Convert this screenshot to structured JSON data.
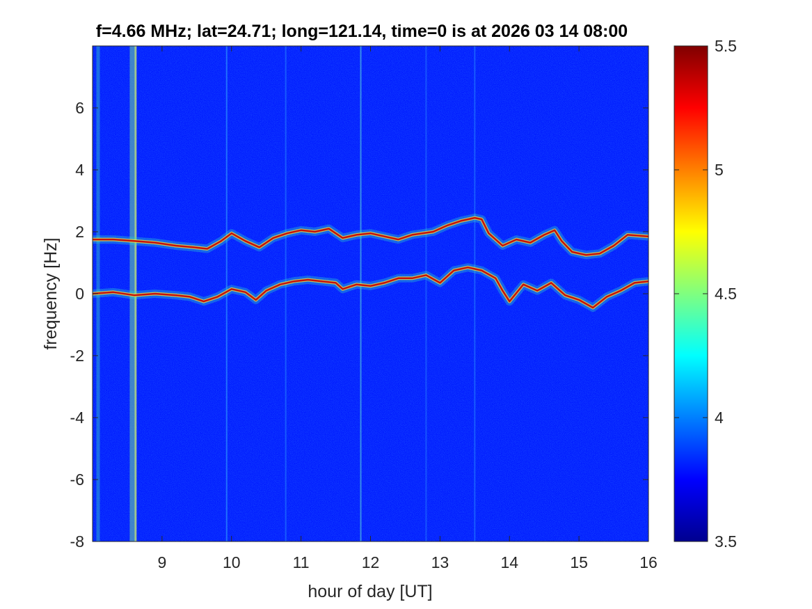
{
  "chart_data": {
    "type": "heatmap",
    "title": "f=4.66 MHz;  lat=24.71; long=121.14, time=0 is at 2026 03 14 08:00",
    "xlabel": "hour of day [UT]",
    "ylabel": "frequency [Hz]",
    "xlim": [
      8,
      16
    ],
    "ylim": [
      -8,
      8
    ],
    "x_ticks": [
      "9",
      "10",
      "11",
      "12",
      "13",
      "14",
      "15",
      "16"
    ],
    "y_ticks": [
      "-8",
      "-6",
      "-4",
      "-2",
      "0",
      "2",
      "4",
      "6"
    ],
    "colorbar": {
      "range": [
        3.5,
        5.5
      ],
      "ticks": [
        "3.5",
        "4",
        "4.5",
        "5",
        "5.5"
      ],
      "colormap": "jet"
    },
    "background_level": 3.8,
    "colors": {
      "jet": [
        "#00008f",
        "#0000ff",
        "#00ffff",
        "#ffff00",
        "#ff0000",
        "#800000"
      ]
    },
    "traces": [
      {
        "hour": [
          8.0,
          8.3,
          8.6,
          8.9,
          9.2,
          9.45,
          9.65,
          9.85,
          10.0,
          10.2,
          10.4,
          10.6,
          10.8,
          11.0,
          11.2,
          11.4,
          11.6,
          11.8,
          12.0,
          12.2,
          12.4,
          12.6,
          12.9,
          13.1,
          13.3,
          13.5,
          13.6,
          13.7,
          13.9,
          14.1,
          14.3,
          14.5,
          14.65,
          14.75,
          14.9,
          15.1,
          15.3,
          15.5,
          15.7,
          16.0
        ],
        "freq_hz": [
          1.75,
          1.75,
          1.7,
          1.65,
          1.55,
          1.5,
          1.45,
          1.7,
          1.95,
          1.7,
          1.5,
          1.8,
          1.95,
          2.05,
          2.0,
          2.1,
          1.8,
          1.9,
          1.95,
          1.85,
          1.75,
          1.9,
          2.0,
          2.2,
          2.35,
          2.45,
          2.4,
          1.95,
          1.55,
          1.75,
          1.65,
          1.9,
          2.05,
          1.7,
          1.35,
          1.25,
          1.3,
          1.55,
          1.9,
          1.85
        ]
      },
      {
        "hour": [
          8.0,
          8.3,
          8.6,
          8.9,
          9.2,
          9.4,
          9.6,
          9.8,
          10.0,
          10.2,
          10.35,
          10.5,
          10.7,
          10.9,
          11.1,
          11.3,
          11.5,
          11.6,
          11.8,
          12.0,
          12.2,
          12.4,
          12.6,
          12.8,
          13.0,
          13.2,
          13.4,
          13.6,
          13.8,
          13.9,
          14.0,
          14.2,
          14.4,
          14.6,
          14.8,
          15.0,
          15.2,
          15.4,
          15.6,
          15.8,
          16.0
        ],
        "freq_hz": [
          0.0,
          0.05,
          -0.05,
          0.0,
          -0.05,
          -0.1,
          -0.25,
          -0.1,
          0.15,
          0.05,
          -0.2,
          0.1,
          0.3,
          0.4,
          0.45,
          0.4,
          0.35,
          0.15,
          0.3,
          0.25,
          0.35,
          0.5,
          0.5,
          0.6,
          0.35,
          0.75,
          0.85,
          0.75,
          0.5,
          0.1,
          -0.25,
          0.3,
          0.1,
          0.35,
          -0.05,
          -0.2,
          -0.45,
          -0.1,
          0.1,
          0.35,
          0.4
        ]
      }
    ]
  }
}
